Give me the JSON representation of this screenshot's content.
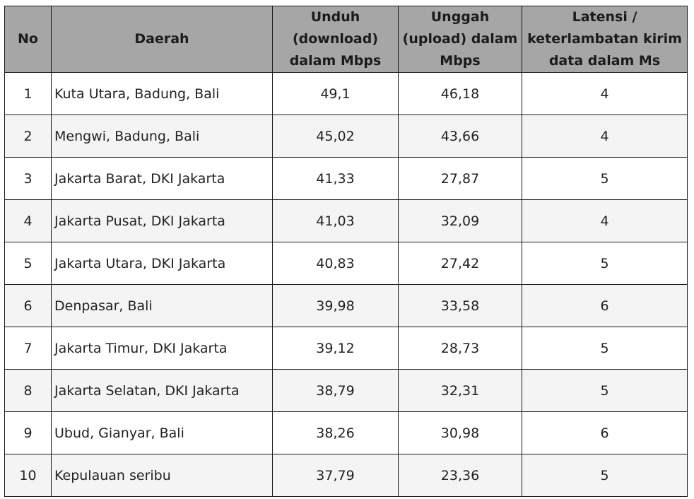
{
  "table": {
    "headers": {
      "no": "No",
      "region": "Daerah",
      "download": "Unduh (download) dalam Mbps",
      "upload": "Unggah (upload) dalam Mbps",
      "latency": "Latensi / keterlambatan kirim data dalam Ms"
    },
    "rows": [
      {
        "no": "1",
        "region": "Kuta Utara, Badung, Bali",
        "download": "49,1",
        "upload": "46,18",
        "latency": "4"
      },
      {
        "no": "2",
        "region": "Mengwi, Badung, Bali",
        "download": "45,02",
        "upload": "43,66",
        "latency": "4"
      },
      {
        "no": "3",
        "region": "Jakarta Barat, DKI Jakarta",
        "download": "41,33",
        "upload": "27,87",
        "latency": "5"
      },
      {
        "no": "4",
        "region": "Jakarta Pusat, DKI Jakarta",
        "download": "41,03",
        "upload": "32,09",
        "latency": "4"
      },
      {
        "no": "5",
        "region": "Jakarta Utara, DKI Jakarta",
        "download": "40,83",
        "upload": "27,42",
        "latency": "5"
      },
      {
        "no": "6",
        "region": "Denpasar, Bali",
        "download": "39,98",
        "upload": "33,58",
        "latency": "6"
      },
      {
        "no": "7",
        "region": "Jakarta Timur, DKI Jakarta",
        "download": "39,12",
        "upload": "28,73",
        "latency": "5"
      },
      {
        "no": "8",
        "region": "Jakarta Selatan, DKI Jakarta",
        "download": "38,79",
        "upload": "32,31",
        "latency": "5"
      },
      {
        "no": "9",
        "region": "Ubud, Gianyar, Bali",
        "download": "38,26",
        "upload": "30,98",
        "latency": "6"
      },
      {
        "no": "10",
        "region": "Kepulauan seribu",
        "download": "37,79",
        "upload": "23,36",
        "latency": "5"
      }
    ]
  }
}
